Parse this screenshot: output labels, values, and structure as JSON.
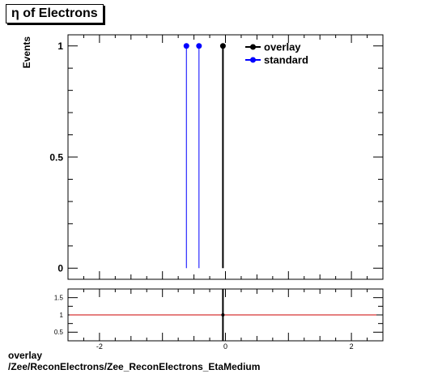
{
  "title": "η of Electrons",
  "footer": {
    "line1": "overlay",
    "line2": "/Zee/ReconElectrons/Zee_ReconElectrons_EtaMedium"
  },
  "chart_data": [
    {
      "type": "line",
      "panel": "main",
      "ylabel": "Events",
      "xlim": [
        -2.5,
        2.5
      ],
      "ylim": [
        -0.05,
        1.05
      ],
      "y_ticks": [
        0,
        0.5,
        1
      ],
      "y_tick_labels": [
        "0",
        "0.5",
        "1"
      ],
      "legend": {
        "placement": "top-right",
        "entries": [
          "overlay",
          "standard"
        ]
      },
      "series": [
        {
          "name": "overlay",
          "color": "#000000",
          "x": [
            -0.04
          ],
          "y": [
            1
          ]
        },
        {
          "name": "standard",
          "color": "#0000ff",
          "x": [
            -0.62,
            -0.42
          ],
          "y": [
            1,
            1
          ]
        }
      ]
    },
    {
      "type": "line",
      "panel": "ratio",
      "xlim": [
        -2.5,
        2.5
      ],
      "ylim": [
        0.25,
        1.75
      ],
      "x_ticks": [
        -2,
        0,
        2
      ],
      "x_tick_labels": [
        "-2",
        "0",
        "2"
      ],
      "y_ticks": [
        0.5,
        1,
        1.5
      ],
      "y_tick_labels": [
        "0.5",
        "1",
        "1.5"
      ],
      "reference_line": {
        "y": 1,
        "color": "#cc0000"
      },
      "series": [
        {
          "name": "ratio",
          "color": "#000000",
          "x": [
            -0.04
          ],
          "y": [
            1
          ]
        }
      ]
    }
  ]
}
